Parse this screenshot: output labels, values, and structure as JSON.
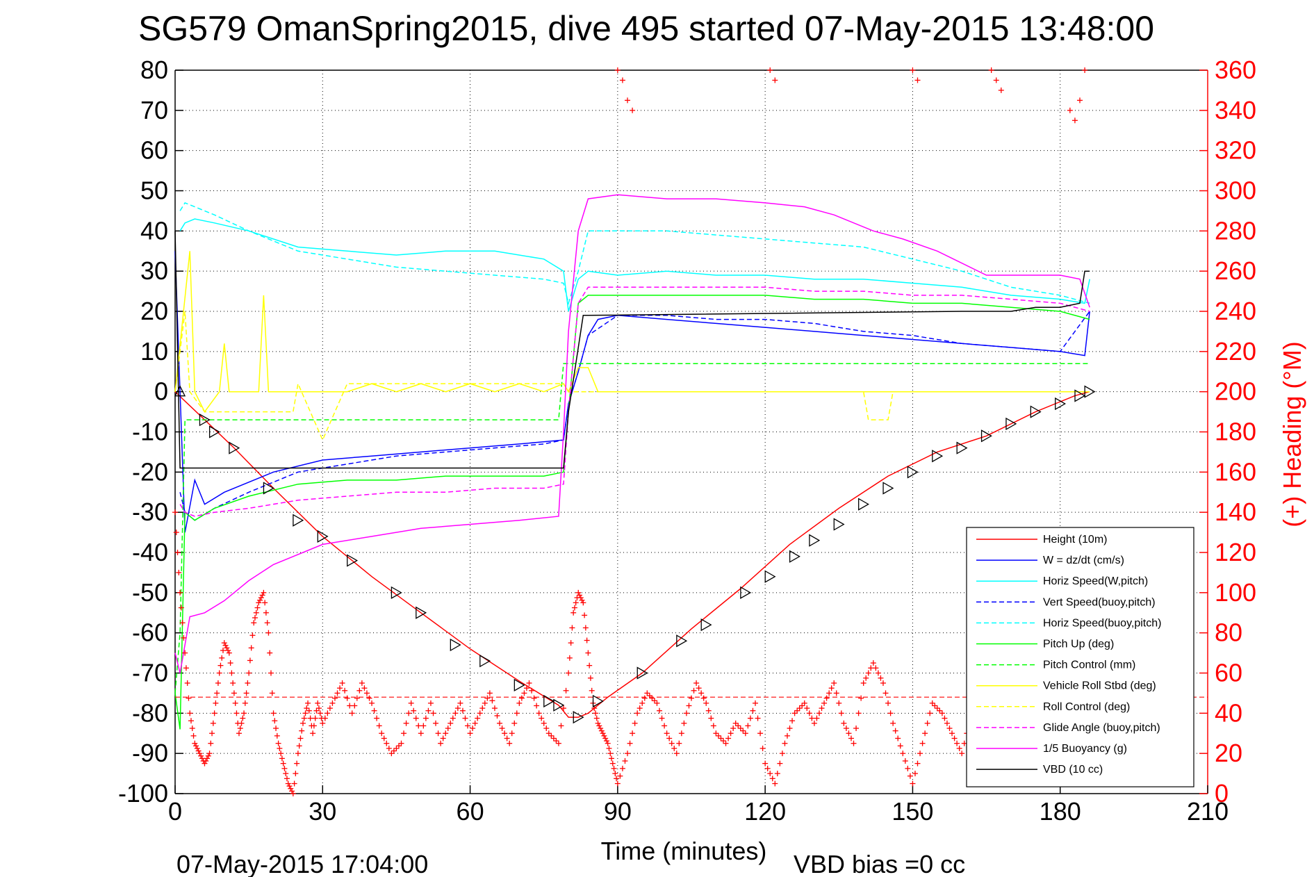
{
  "chart_data": {
    "type": "line",
    "title": "SG579 OmanSpring2015, dive 495 started 07-May-2015 13:48:00",
    "xlabel": "Time (minutes)",
    "ylabel_right": "(+) Heading (°M)",
    "footer_left": "07-May-2015 17:04:00",
    "footer_right": "VBD bias =0 cc",
    "xlim": [
      0,
      210
    ],
    "ylim": [
      -100,
      80
    ],
    "ylim_right": [
      0,
      360
    ],
    "x_ticks": [
      0,
      30,
      60,
      90,
      120,
      150,
      180,
      210
    ],
    "y_ticks": [
      80,
      70,
      60,
      50,
      40,
      30,
      20,
      10,
      0,
      -10,
      -20,
      -30,
      -40,
      -50,
      -60,
      -70,
      -80,
      -90,
      -100
    ],
    "y_ticks_right": [
      360,
      340,
      320,
      300,
      280,
      260,
      240,
      220,
      200,
      180,
      160,
      140,
      120,
      100,
      80,
      60,
      40,
      20,
      0
    ],
    "grid": true,
    "legend_position": "bottom-right",
    "colors": {
      "height": "#ff0000",
      "w": "#0000ff",
      "horiz_w": "#00ffff",
      "vert_buoy": "#0000ff",
      "horiz_buoy": "#00ffff",
      "pitch": "#00ff00",
      "pitch_ctrl": "#00ff00",
      "roll": "#ffff00",
      "roll_ctrl": "#ffff00",
      "glide": "#ff00ff",
      "buoyancy": "#ff00ff",
      "vbd": "#000000",
      "heading": "#ff0000"
    },
    "series": [
      {
        "name": "Height (10m)",
        "key": "height",
        "style": "solid",
        "x": [
          0,
          6,
          12,
          20,
          30,
          40,
          50,
          60,
          70,
          78,
          80,
          82,
          84,
          88,
          95,
          105,
          115,
          125,
          135,
          145,
          155,
          165,
          175,
          183,
          186
        ],
        "y": [
          0,
          -7,
          -14,
          -24,
          -36,
          -46,
          -55,
          -64,
          -72,
          -78,
          -81,
          -81,
          -80,
          -76,
          -70,
          -59,
          -49,
          -38,
          -29,
          -21,
          -15,
          -11,
          -5,
          -1,
          0
        ]
      },
      {
        "name": "W = dz/dt (cm/s)",
        "key": "w",
        "style": "solid",
        "x": [
          0,
          1,
          2,
          4,
          6,
          10,
          20,
          30,
          40,
          50,
          60,
          70,
          79,
          80,
          82,
          84,
          86,
          90,
          100,
          110,
          120,
          130,
          140,
          150,
          160,
          170,
          180,
          185,
          186
        ],
        "y": [
          35,
          0,
          -35,
          -22,
          -28,
          -25,
          -20,
          -17,
          -16,
          -15,
          -14,
          -13,
          -12,
          -3,
          5,
          14,
          18,
          19,
          18,
          17,
          16,
          15,
          14,
          13,
          12,
          11,
          10,
          9,
          20
        ]
      },
      {
        "name": "Horiz Speed(W,pitch)",
        "key": "horiz_w",
        "style": "solid",
        "x": [
          1,
          2,
          4,
          8,
          15,
          25,
          35,
          45,
          55,
          65,
          75,
          79,
          80,
          82,
          84,
          90,
          100,
          110,
          120,
          130,
          140,
          150,
          160,
          170,
          180,
          185,
          186
        ],
        "y": [
          40,
          42,
          43,
          42,
          40,
          36,
          35,
          34,
          35,
          35,
          33,
          30,
          20,
          28,
          30,
          29,
          30,
          29,
          29,
          28,
          28,
          27,
          26,
          24,
          23,
          22,
          28
        ]
      },
      {
        "name": "Vert Speed(buoy,pitch)",
        "key": "vert_buoy",
        "style": "dashed",
        "x": [
          1,
          2,
          4,
          8,
          15,
          25,
          35,
          45,
          55,
          65,
          75,
          79,
          80,
          82,
          84,
          90,
          100,
          110,
          120,
          130,
          140,
          150,
          160,
          170,
          180,
          186
        ],
        "y": [
          -25,
          -30,
          -32,
          -29,
          -25,
          -20,
          -18,
          -16,
          -15,
          -14,
          -13,
          -12,
          -3,
          5,
          14,
          19,
          19,
          18,
          18,
          17,
          15,
          14,
          12,
          11,
          10,
          20
        ]
      },
      {
        "name": "Horiz Speed(buoy,pitch)",
        "key": "horiz_buoy",
        "style": "dashed",
        "x": [
          1,
          2,
          4,
          8,
          15,
          25,
          35,
          45,
          55,
          65,
          75,
          79,
          80,
          82,
          84,
          90,
          100,
          110,
          120,
          130,
          140,
          150,
          160,
          170,
          180,
          186
        ],
        "y": [
          45,
          47,
          46,
          44,
          40,
          35,
          33,
          31,
          30,
          29,
          28,
          27,
          22,
          30,
          40,
          40,
          40,
          39,
          38,
          37,
          36,
          33,
          30,
          26,
          24,
          22
        ]
      },
      {
        "name": "Pitch Up (deg)",
        "key": "pitch",
        "style": "solid",
        "x": [
          0,
          1,
          2,
          4,
          8,
          15,
          25,
          35,
          45,
          55,
          65,
          75,
          79,
          80,
          82,
          84,
          90,
          100,
          110,
          120,
          130,
          140,
          150,
          160,
          170,
          180,
          186
        ],
        "y": [
          -75,
          -84,
          -30,
          -32,
          -29,
          -26,
          -23,
          -22,
          -22,
          -21,
          -21,
          -21,
          -20,
          -5,
          22,
          24,
          24,
          24,
          24,
          24,
          23,
          23,
          22,
          22,
          21,
          20,
          18
        ]
      },
      {
        "name": "Pitch Control (mm)",
        "key": "pitch_ctrl",
        "style": "dashed",
        "x": [
          0,
          1,
          2,
          6,
          78,
          79,
          84,
          186
        ],
        "y": [
          -75,
          -60,
          -7,
          -7,
          -7,
          7,
          7,
          7
        ]
      },
      {
        "name": "Vehicle Roll Stbd (deg)",
        "key": "roll",
        "style": "solid",
        "x": [
          0,
          3,
          4,
          6,
          9,
          10,
          11,
          12,
          17,
          18,
          19,
          25,
          30,
          35,
          40,
          45,
          50,
          55,
          60,
          65,
          70,
          75,
          79,
          80,
          82,
          84,
          86,
          90,
          100,
          110,
          120,
          130,
          140,
          150,
          160,
          170,
          180,
          186
        ],
        "y": [
          0,
          35,
          0,
          -5,
          0,
          12,
          0,
          0,
          0,
          24,
          0,
          0,
          0,
          0,
          2,
          0,
          2,
          0,
          2,
          0,
          2,
          0,
          2,
          0,
          6,
          6,
          0,
          0,
          0,
          0,
          0,
          0,
          0,
          0,
          0,
          0,
          0,
          0
        ]
      },
      {
        "name": "Roll Control (deg)",
        "key": "roll_ctrl",
        "style": "dashed",
        "x": [
          0,
          2,
          3,
          6,
          24,
          25,
          30,
          35,
          40,
          79,
          80,
          84,
          90,
          140,
          141,
          145,
          146,
          186
        ],
        "y": [
          0,
          20,
          0,
          -5,
          -5,
          2,
          -12,
          2,
          2,
          2,
          0,
          0,
          0,
          0,
          -7,
          -7,
          0,
          0
        ]
      },
      {
        "name": "Glide Angle (buoy,pitch)",
        "key": "glide",
        "style": "dashed",
        "x": [
          1,
          2,
          4,
          8,
          15,
          25,
          35,
          45,
          55,
          65,
          75,
          79,
          80,
          82,
          84,
          90,
          100,
          110,
          120,
          130,
          140,
          150,
          160,
          170,
          180,
          186
        ],
        "y": [
          -28,
          -30,
          -31,
          -30,
          -29,
          -27,
          -26,
          -25,
          -25,
          -24,
          -24,
          -23,
          -5,
          22,
          26,
          26,
          26,
          26,
          26,
          25,
          25,
          24,
          24,
          23,
          22,
          20
        ]
      },
      {
        "name": "1/5 Buoyancy (g)",
        "key": "buoyancy",
        "style": "solid",
        "x": [
          0,
          1,
          3,
          6,
          10,
          15,
          20,
          30,
          40,
          50,
          60,
          70,
          78,
          79,
          80,
          82,
          84,
          90,
          100,
          110,
          120,
          128,
          134,
          142,
          148,
          155,
          165,
          170,
          175,
          180,
          184,
          186
        ],
        "y": [
          -65,
          -70,
          -56,
          -55,
          -52,
          -47,
          -43,
          -38,
          -36,
          -34,
          -33,
          -32,
          -31,
          -10,
          15,
          40,
          48,
          49,
          48,
          48,
          47,
          46,
          44,
          40,
          38,
          35,
          29,
          29,
          29,
          29,
          28,
          21
        ]
      },
      {
        "name": "VBD (10 cc)",
        "key": "vbd",
        "style": "solid",
        "x": [
          0,
          1,
          2,
          78,
          79,
          80,
          83,
          84,
          160,
          170,
          175,
          180,
          184,
          185,
          186
        ],
        "y": [
          40,
          -19,
          -19,
          -19,
          -19,
          -5,
          19,
          19,
          20,
          20,
          21,
          21,
          22,
          30,
          30
        ]
      }
    ],
    "heading_series": {
      "name": "Heading",
      "x": [
        0,
        1,
        2,
        3,
        4,
        5,
        6,
        7,
        8,
        9,
        10,
        11,
        12,
        13,
        14,
        15,
        16,
        17,
        18,
        19,
        20,
        21,
        22,
        23,
        24,
        25,
        26,
        27,
        28,
        29,
        30,
        32,
        34,
        36,
        38,
        40,
        42,
        44,
        46,
        48,
        50,
        52,
        54,
        56,
        58,
        60,
        62,
        64,
        66,
        68,
        70,
        72,
        74,
        76,
        78,
        80,
        81,
        82,
        83,
        84,
        85,
        86,
        87,
        88,
        89,
        90,
        92,
        94,
        96,
        98,
        100,
        102,
        104,
        106,
        108,
        110,
        112,
        114,
        116,
        118,
        120,
        122,
        124,
        126,
        128,
        130,
        132,
        134,
        136,
        138,
        140,
        142,
        144,
        146,
        148,
        150,
        152,
        154,
        156,
        158,
        160,
        162,
        164,
        166,
        168
      ],
      "y": [
        140,
        100,
        70,
        40,
        25,
        20,
        15,
        20,
        40,
        60,
        75,
        70,
        50,
        30,
        40,
        60,
        85,
        95,
        100,
        80,
        40,
        25,
        15,
        5,
        0,
        20,
        35,
        45,
        30,
        45,
        35,
        45,
        55,
        40,
        55,
        45,
        30,
        20,
        25,
        45,
        30,
        45,
        25,
        35,
        45,
        30,
        40,
        50,
        35,
        25,
        45,
        55,
        40,
        30,
        25,
        60,
        90,
        100,
        95,
        70,
        45,
        35,
        30,
        25,
        15,
        5,
        20,
        40,
        50,
        45,
        30,
        20,
        40,
        55,
        45,
        30,
        25,
        35,
        30,
        45,
        15,
        5,
        25,
        40,
        45,
        35,
        45,
        55,
        35,
        25,
        55,
        65,
        55,
        35,
        20,
        5,
        25,
        45,
        40,
        30,
        20,
        40,
        25,
        10,
        30
      ]
    },
    "heading_wrap_points": {
      "x": [
        90,
        91,
        92,
        93,
        121,
        122,
        150,
        151,
        166,
        167,
        168,
        182,
        183,
        184,
        185
      ],
      "y": [
        360,
        355,
        345,
        340,
        360,
        355,
        360,
        355,
        360,
        355,
        350,
        340,
        335,
        345,
        360
      ]
    },
    "heading_mean": 48,
    "dive_markers": {
      "x": [
        1,
        6,
        8,
        12,
        19,
        25,
        30,
        36,
        45,
        50,
        57,
        63,
        70,
        76,
        78,
        82,
        86,
        95,
        103,
        108,
        116,
        121,
        126,
        130,
        135,
        140,
        145,
        150,
        155,
        160,
        165,
        170,
        175,
        180,
        184,
        186
      ],
      "y": [
        0,
        -7,
        -10,
        -14,
        -24,
        -32,
        -36,
        -42,
        -50,
        -55,
        -63,
        -67,
        -73,
        -77,
        -78,
        -81,
        -77,
        -70,
        -62,
        -58,
        -50,
        -46,
        -41,
        -37,
        -33,
        -28,
        -24,
        -20,
        -16,
        -14,
        -11,
        -8,
        -5,
        -3,
        -1,
        0
      ]
    }
  }
}
